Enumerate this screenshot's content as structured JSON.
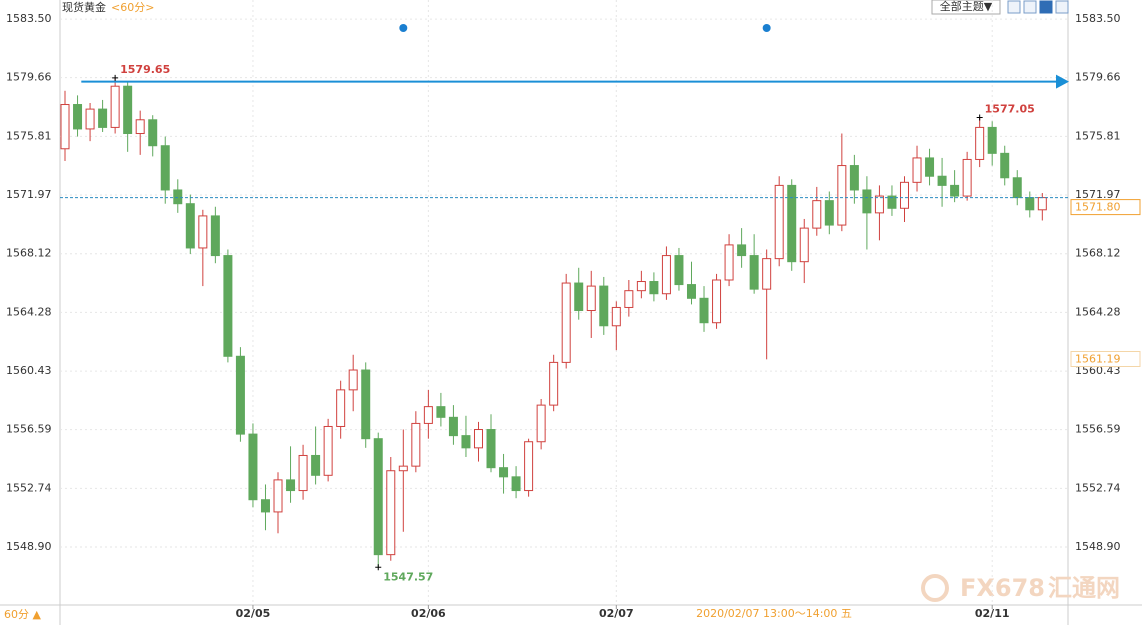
{
  "chart_data": {
    "type": "candlestick",
    "title": "现货黄金",
    "period": "<60分>",
    "theme_button": "全部主题▼",
    "period_button": "60分 ▲",
    "crosshair_label": "2020/02/07 13:00～14:00 五",
    "watermark": "FX678",
    "watermark_cn": "汇通网",
    "up_color": "#d0413e",
    "down_color": "#5fa85c",
    "open": [
      1575.0,
      1577.9,
      1576.3,
      1577.6,
      1576.4,
      1579.1,
      1576.0,
      1576.9,
      1575.2,
      1572.3,
      1571.4,
      1568.5,
      1570.6,
      1568.0,
      1561.4,
      1556.3,
      1552.0,
      1551.2,
      1553.3,
      1552.6,
      1554.9,
      1553.6,
      1556.8,
      1559.2,
      1560.5,
      1556.0,
      1548.4,
      1553.9,
      1554.2,
      1557.0,
      1558.1,
      1557.4,
      1556.2,
      1555.4,
      1556.6,
      1554.1,
      1553.5,
      1552.6,
      1555.8,
      1558.2,
      1561.0,
      1566.2,
      1564.4,
      1566.0,
      1563.4,
      1564.6,
      1565.7,
      1566.3,
      1565.5,
      1568.0,
      1566.1,
      1565.2,
      1563.6,
      1566.4,
      1568.7,
      1568.0,
      1565.8,
      1567.8,
      1572.6,
      1567.6,
      1569.8,
      1571.6,
      1570.0,
      1573.9,
      1572.3,
      1570.8,
      1571.9,
      1571.1,
      1572.8,
      1574.4,
      1573.2,
      1572.6,
      1571.9,
      1574.3,
      1576.4,
      1574.7,
      1573.1,
      1571.8,
      1571.0
    ],
    "high": [
      1578.8,
      1578.5,
      1578.0,
      1578.2,
      1579.65,
      1579.4,
      1577.5,
      1577.2,
      1575.8,
      1573.0,
      1572.0,
      1571.0,
      1571.2,
      1568.4,
      1562.0,
      1557.0,
      1553.0,
      1553.8,
      1555.5,
      1555.6,
      1556.8,
      1557.3,
      1559.8,
      1561.5,
      1561.0,
      1556.4,
      1554.8,
      1556.6,
      1557.8,
      1559.2,
      1559.0,
      1558.2,
      1557.5,
      1557.1,
      1557.6,
      1555.0,
      1554.2,
      1556.0,
      1558.6,
      1561.5,
      1566.8,
      1567.2,
      1567.0,
      1566.6,
      1565.0,
      1566.4,
      1567.0,
      1566.9,
      1568.6,
      1568.5,
      1567.6,
      1566.0,
      1566.8,
      1569.4,
      1569.8,
      1569.4,
      1568.4,
      1573.2,
      1573.0,
      1570.4,
      1572.5,
      1572.2,
      1576.0,
      1574.6,
      1573.2,
      1572.6,
      1572.6,
      1573.2,
      1575.2,
      1575.0,
      1574.4,
      1573.6,
      1574.8,
      1577.05,
      1576.8,
      1575.2,
      1573.6,
      1572.2,
      1572.1
    ],
    "low": [
      1574.2,
      1575.8,
      1575.5,
      1576.1,
      1576.0,
      1574.8,
      1574.6,
      1574.5,
      1571.4,
      1570.8,
      1568.1,
      1566.0,
      1567.5,
      1561.0,
      1555.8,
      1551.5,
      1550.0,
      1549.8,
      1551.8,
      1552.0,
      1553.0,
      1553.2,
      1556.0,
      1557.8,
      1555.4,
      1547.57,
      1548.0,
      1549.9,
      1553.8,
      1556.0,
      1556.8,
      1555.6,
      1554.8,
      1554.5,
      1553.8,
      1552.4,
      1552.1,
      1552.2,
      1555.3,
      1557.8,
      1560.6,
      1563.8,
      1562.6,
      1562.8,
      1561.8,
      1564.0,
      1565.2,
      1565.0,
      1565.1,
      1565.7,
      1564.8,
      1563.0,
      1563.2,
      1566.0,
      1567.2,
      1565.5,
      1561.2,
      1567.3,
      1567.0,
      1566.2,
      1569.3,
      1569.4,
      1569.6,
      1571.4,
      1568.4,
      1569.0,
      1570.6,
      1570.2,
      1572.2,
      1572.6,
      1571.2,
      1571.5,
      1571.6,
      1573.8,
      1573.9,
      1572.6,
      1571.3,
      1570.5,
      1570.3
    ],
    "close": [
      1577.9,
      1576.3,
      1577.6,
      1576.4,
      1579.1,
      1576.0,
      1576.9,
      1575.2,
      1572.3,
      1571.4,
      1568.5,
      1570.6,
      1568.0,
      1561.4,
      1556.3,
      1552.0,
      1551.2,
      1553.3,
      1552.6,
      1554.9,
      1553.6,
      1556.8,
      1559.2,
      1560.5,
      1556.0,
      1548.4,
      1553.9,
      1554.2,
      1557.0,
      1558.1,
      1557.4,
      1556.2,
      1555.4,
      1556.6,
      1554.1,
      1553.5,
      1552.6,
      1555.8,
      1558.2,
      1561.0,
      1566.2,
      1564.4,
      1566.0,
      1563.4,
      1564.6,
      1565.7,
      1566.3,
      1565.5,
      1568.0,
      1566.1,
      1565.2,
      1563.6,
      1566.4,
      1568.7,
      1568.0,
      1565.8,
      1567.8,
      1572.6,
      1567.6,
      1569.8,
      1571.6,
      1570.0,
      1573.9,
      1572.3,
      1570.8,
      1571.9,
      1571.1,
      1572.8,
      1574.4,
      1573.2,
      1572.6,
      1571.9,
      1574.3,
      1576.4,
      1574.7,
      1573.1,
      1571.8,
      1571.0,
      1571.8
    ],
    "xlim": [
      -0.4,
      80.05
    ],
    "xticks": [
      {
        "value": 15,
        "label": "02/05"
      },
      {
        "value": 29,
        "label": "02/06"
      },
      {
        "value": 44,
        "label": "02/07"
      },
      {
        "value": 74,
        "label": "02/11"
      }
    ],
    "ylim": [
      1545.1,
      1584.75
    ],
    "yticks": [
      {
        "value": 1583.5,
        "label": "1583.50"
      },
      1579.66,
      1575.81,
      1571.97,
      1568.12,
      1564.28,
      1560.43,
      1556.59,
      1552.74,
      {
        "value": 1548.9,
        "label": "1548.90"
      }
    ],
    "markers": [
      {
        "index": 4,
        "value": 1579.65,
        "color": "#d0413e"
      },
      {
        "index": 25,
        "value": 1547.57,
        "color": "#5fa85c"
      },
      {
        "index": 73,
        "value": 1577.05,
        "color": "#d0413e"
      }
    ],
    "hline": {
      "value": 1579.4,
      "color": "#1a8fd6"
    },
    "events": [
      27,
      56
    ],
    "last_price": {
      "value": 1571.8,
      "label": "1571.80",
      "color": "#f0a030"
    },
    "crosshair_price": 1561.19,
    "grid": true
  }
}
